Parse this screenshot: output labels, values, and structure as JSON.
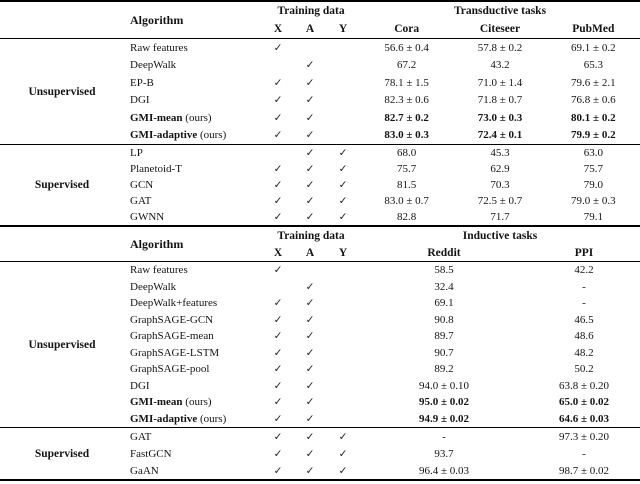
{
  "page": {
    "background": "#ffffff",
    "text_color": "#141414",
    "rule_color": "#000000",
    "check_glyph": "✓",
    "missing_glyph": "-"
  },
  "tables": [
    {
      "name": "transductive",
      "header": {
        "algorithm_label": "Algorithm",
        "training_label": "Training data",
        "training_cols": [
          "X",
          "A",
          "Y"
        ],
        "tasks_label": "Transductive tasks",
        "task_cols": [
          "Cora",
          "Citeseer",
          "PubMed"
        ]
      },
      "sections": [
        {
          "label": "Unsupervised",
          "rows": [
            {
              "algorithm": "Raw features",
              "suffix": "",
              "bold": false,
              "checks": [
                true,
                false,
                false
              ],
              "values": [
                "56.6 ± 0.4",
                "57.8 ± 0.2",
                "69.1 ± 0.2"
              ]
            },
            {
              "algorithm": "DeepWalk",
              "suffix": "",
              "bold": false,
              "checks": [
                false,
                true,
                false
              ],
              "values": [
                "67.2",
                "43.2",
                "65.3"
              ]
            },
            {
              "algorithm": "EP-B",
              "suffix": "",
              "bold": false,
              "checks": [
                true,
                true,
                false
              ],
              "values": [
                "78.1 ± 1.5",
                "71.0 ± 1.4",
                "79.6 ± 2.1"
              ]
            },
            {
              "algorithm": "DGI",
              "suffix": "",
              "bold": false,
              "checks": [
                true,
                true,
                false
              ],
              "values": [
                "82.3 ± 0.6",
                "71.8 ± 0.7",
                "76.8 ± 0.6"
              ]
            },
            {
              "algorithm": "GMI-mean",
              "suffix": "(ours)",
              "bold": true,
              "checks": [
                true,
                true,
                false
              ],
              "values": [
                "82.7 ± 0.2",
                "73.0 ± 0.3",
                "80.1 ± 0.2"
              ]
            },
            {
              "algorithm": "GMI-adaptive",
              "suffix": "(ours)",
              "bold": true,
              "checks": [
                true,
                true,
                false
              ],
              "values": [
                "83.0 ± 0.3",
                "72.4 ± 0.1",
                "79.9 ± 0.2"
              ]
            }
          ]
        },
        {
          "label": "Supervised",
          "rows": [
            {
              "algorithm": "LP",
              "suffix": "",
              "bold": false,
              "checks": [
                false,
                true,
                true
              ],
              "values": [
                "68.0",
                "45.3",
                "63.0"
              ]
            },
            {
              "algorithm": "Planetoid-T",
              "suffix": "",
              "bold": false,
              "checks": [
                true,
                true,
                true
              ],
              "values": [
                "75.7",
                "62.9",
                "75.7"
              ]
            },
            {
              "algorithm": "GCN",
              "suffix": "",
              "bold": false,
              "checks": [
                true,
                true,
                true
              ],
              "values": [
                "81.5",
                "70.3",
                "79.0"
              ]
            },
            {
              "algorithm": "GAT",
              "suffix": "",
              "bold": false,
              "checks": [
                true,
                true,
                true
              ],
              "values": [
                "83.0 ± 0.7",
                "72.5 ± 0.7",
                "79.0 ± 0.3"
              ]
            },
            {
              "algorithm": "GWNN",
              "suffix": "",
              "bold": false,
              "checks": [
                true,
                true,
                true
              ],
              "values": [
                "82.8",
                "71.7",
                "79.1"
              ]
            }
          ]
        }
      ]
    },
    {
      "name": "inductive",
      "header": {
        "algorithm_label": "Algorithm",
        "training_label": "Training data",
        "training_cols": [
          "X",
          "A",
          "Y"
        ],
        "tasks_label": "Inductive tasks",
        "task_cols": [
          "Reddit",
          "PPI"
        ]
      },
      "sections": [
        {
          "label": "Unsupervised",
          "rows": [
            {
              "algorithm": "Raw features",
              "suffix": "",
              "bold": false,
              "checks": [
                true,
                false,
                false
              ],
              "values": [
                "58.5",
                "42.2"
              ]
            },
            {
              "algorithm": "DeepWalk",
              "suffix": "",
              "bold": false,
              "checks": [
                false,
                true,
                false
              ],
              "values": [
                "32.4",
                "-"
              ]
            },
            {
              "algorithm": "DeepWalk+features",
              "suffix": "",
              "bold": false,
              "checks": [
                true,
                true,
                false
              ],
              "values": [
                "69.1",
                "-"
              ]
            },
            {
              "algorithm": "GraphSAGE-GCN",
              "suffix": "",
              "bold": false,
              "checks": [
                true,
                true,
                false
              ],
              "values": [
                "90.8",
                "46.5"
              ]
            },
            {
              "algorithm": "GraphSAGE-mean",
              "suffix": "",
              "bold": false,
              "checks": [
                true,
                true,
                false
              ],
              "values": [
                "89.7",
                "48.6"
              ]
            },
            {
              "algorithm": "GraphSAGE-LSTM",
              "suffix": "",
              "bold": false,
              "checks": [
                true,
                true,
                false
              ],
              "values": [
                "90.7",
                "48.2"
              ]
            },
            {
              "algorithm": "GraphSAGE-pool",
              "suffix": "",
              "bold": false,
              "checks": [
                true,
                true,
                false
              ],
              "values": [
                "89.2",
                "50.2"
              ]
            },
            {
              "algorithm": "DGI",
              "suffix": "",
              "bold": false,
              "checks": [
                true,
                true,
                false
              ],
              "values": [
                "94.0 ± 0.10",
                "63.8 ± 0.20"
              ]
            },
            {
              "algorithm": "GMI-mean",
              "suffix": "(ours)",
              "bold": true,
              "checks": [
                true,
                true,
                false
              ],
              "values": [
                "95.0 ± 0.02",
                "65.0 ± 0.02"
              ]
            },
            {
              "algorithm": "GMI-adaptive",
              "suffix": "(ours)",
              "bold": true,
              "checks": [
                true,
                true,
                false
              ],
              "values": [
                "94.9 ± 0.02",
                "64.6 ± 0.03"
              ]
            }
          ]
        },
        {
          "label": "Supervised",
          "rows": [
            {
              "algorithm": "GAT",
              "suffix": "",
              "bold": false,
              "checks": [
                true,
                true,
                true
              ],
              "values": [
                "-",
                "97.3 ± 0.20"
              ]
            },
            {
              "algorithm": "FastGCN",
              "suffix": "",
              "bold": false,
              "checks": [
                true,
                true,
                true
              ],
              "values": [
                "93.7",
                "-"
              ]
            },
            {
              "algorithm": "GaAN",
              "suffix": "",
              "bold": false,
              "checks": [
                true,
                true,
                true
              ],
              "values": [
                "96.4 ± 0.03",
                "98.7 ± 0.02"
              ]
            }
          ]
        }
      ]
    }
  ]
}
